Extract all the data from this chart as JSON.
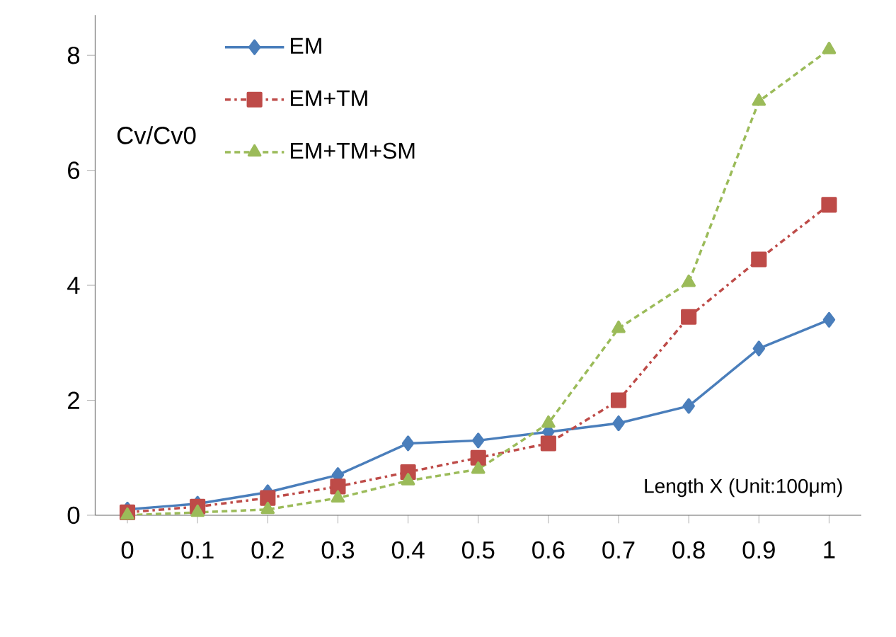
{
  "chart_data": {
    "type": "line",
    "ylabel": "Cv/Cv0",
    "xlabel": "Length X (Unit:100μm)",
    "categories": [
      "0",
      "0.1",
      "0.2",
      "0.3",
      "0.4",
      "0.5",
      "0.6",
      "0.7",
      "0.8",
      "0.9",
      "1"
    ],
    "ylim": [
      0,
      8.7
    ],
    "yticks": [
      0,
      2,
      4,
      6,
      8
    ],
    "grid": false,
    "legend": "top left",
    "series": [
      {
        "name": "EM",
        "color": "#4a7ebb",
        "marker": "diamond",
        "line_style": "solid",
        "values": [
          0.1,
          0.2,
          0.4,
          0.7,
          1.25,
          1.3,
          1.45,
          1.6,
          1.9,
          2.9,
          3.4
        ]
      },
      {
        "name": "EM+TM",
        "color": "#be4b48",
        "marker": "square",
        "line_style": "dashed",
        "values": [
          0.05,
          0.15,
          0.3,
          0.5,
          0.75,
          1.0,
          1.25,
          2.0,
          3.45,
          4.45,
          5.4
        ]
      },
      {
        "name": "EM+TM+SM",
        "color": "#9bbb59",
        "marker": "triangle",
        "line_style": "dotted",
        "values": [
          0,
          0.05,
          0.1,
          0.3,
          0.6,
          0.8,
          1.6,
          3.25,
          4.05,
          7.2,
          8.1
        ]
      }
    ]
  }
}
